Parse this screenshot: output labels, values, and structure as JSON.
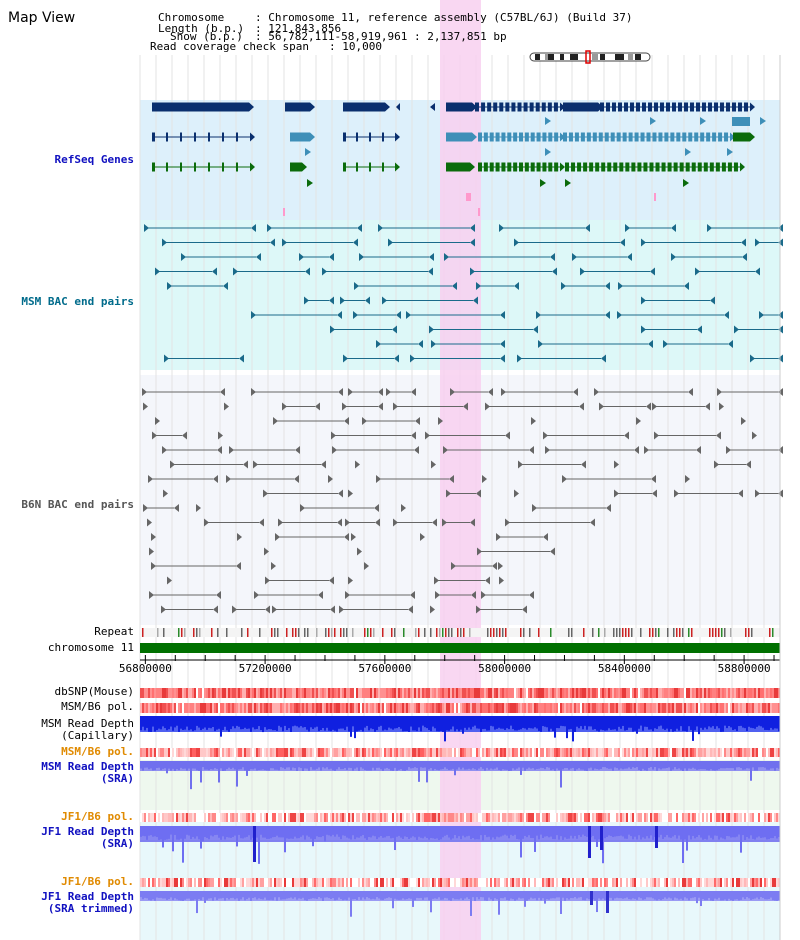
{
  "window": {
    "title": "Map View"
  },
  "header": {
    "chromosome": {
      "key": "Chromosome",
      "value": "Chromosome 11, reference assembly (C57BL/6J) (Build 37)"
    },
    "length": {
      "key": "Length (b.p.)",
      "value": "121,843,856"
    },
    "show": {
      "key": "Show (b.p.)",
      "value": "56,782,111-58,919,961 : 2,137,851 bp"
    },
    "coverage": {
      "key": "Read coverage check span",
      "value": "10,000"
    }
  },
  "tracks": {
    "refseq": "RefSeq Genes",
    "msm_bac": "MSM BAC end pairs",
    "b6n_bac": "B6N BAC end pairs",
    "repeat": "Repeat",
    "chromosome": "chromosome 11",
    "dbsnp": "dbSNP(Mouse)",
    "msm_b6_pol": "MSM/B6 pol.",
    "msm_read_depth_cap": "MSM Read Depth\n(Capillary)",
    "msm_b6_pol_2": "MSM/B6 pol.",
    "msm_read_depth_sra": "MSM Read Depth\n(SRA)",
    "jf1_b6_pol": "JF1/B6 pol.",
    "jf1_read_depth_sra": "JF1 Read Depth\n(SRA)",
    "jf1_b6_pol_2": "JF1/B6 pol.",
    "jf1_read_depth_trim": "JF1 Read Depth\n(SRA trimmed)"
  },
  "axis": {
    "ticks": [
      "56800000",
      "57200000",
      "57600000",
      "58000000",
      "58400000",
      "58800000"
    ]
  },
  "colors": {
    "refseq_bg": "#ddf0fb",
    "msm_bg": "#ddf8f8",
    "b6n_bg": "#f4f6fb",
    "highlight": "#f8d0f0",
    "gene_dark": "#0a2f6e",
    "gene_mid": "#3e8fb8",
    "gene_green": "#0b6b0b",
    "msm_line": "#1a6a8a",
    "b6n_line": "#666666",
    "chrom_bar": "#007000",
    "label_blue": "#1010c0",
    "label_teal": "#006b8b",
    "label_orange": "#e08a00"
  }
}
